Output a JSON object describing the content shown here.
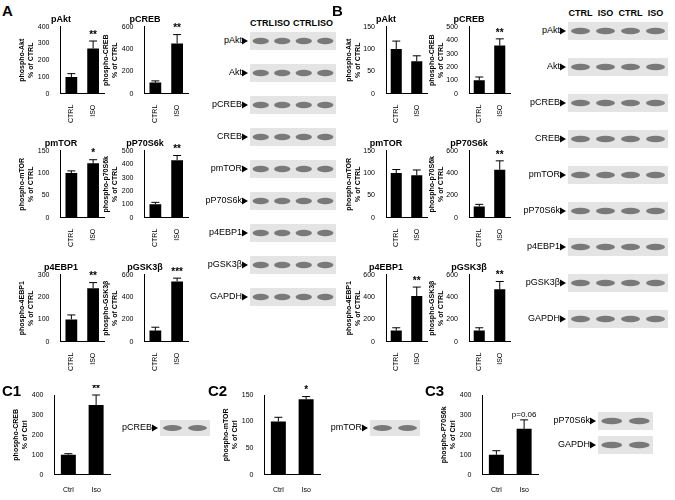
{
  "chart_data": [
    {
      "type": "bar",
      "title": "pAkt",
      "categories": [
        "CTRL",
        "ISO"
      ],
      "values": [
        100,
        270
      ],
      "errors": [
        20,
        45
      ],
      "annotation": "**",
      "ylabel": "phospho-Akt\n% of CTRL",
      "ylim": [
        0,
        400
      ],
      "yticks": [
        0,
        100,
        200,
        300,
        400
      ],
      "color": "#000000",
      "grid": false
    },
    {
      "type": "bar",
      "title": "pCREB",
      "categories": [
        "CTRL",
        "ISO"
      ],
      "values": [
        100,
        450
      ],
      "errors": [
        15,
        80
      ],
      "annotation": "**",
      "ylabel": "phospho-CREB\n% of CTRL",
      "ylim": [
        0,
        600
      ],
      "yticks": [
        0,
        200,
        400,
        600
      ],
      "color": "#000000",
      "grid": false
    },
    {
      "type": "bar",
      "title": "pmTOR",
      "categories": [
        "CTRL",
        "ISO"
      ],
      "values": [
        100,
        122
      ],
      "errors": [
        5,
        8
      ],
      "annotation": "*",
      "ylabel": "phospho-mTOR\n% of CTRL",
      "ylim": [
        0,
        150
      ],
      "yticks": [
        0,
        50,
        100,
        150
      ],
      "color": "#000000",
      "grid": false
    },
    {
      "type": "bar",
      "title": "pP70S6k",
      "categories": [
        "CTRL",
        "ISO"
      ],
      "values": [
        100,
        430
      ],
      "errors": [
        15,
        35
      ],
      "annotation": "**",
      "ylabel": "phospho-p70S6k\n% of CTRL",
      "ylim": [
        0,
        500
      ],
      "yticks": [
        0,
        100,
        200,
        300,
        400,
        500
      ],
      "color": "#000000",
      "grid": false
    },
    {
      "type": "bar",
      "title": "p4EBP1",
      "categories": [
        "CTRL",
        "ISO"
      ],
      "values": [
        100,
        240
      ],
      "errors": [
        20,
        25
      ],
      "annotation": "**",
      "ylabel": "phospho-4EBP1\n% of CTRL",
      "ylim": [
        0,
        300
      ],
      "yticks": [
        0,
        100,
        200,
        300
      ],
      "color": "#000000",
      "grid": false
    },
    {
      "type": "bar",
      "title": "pGSK3β",
      "categories": [
        "CTRL",
        "ISO"
      ],
      "values": [
        100,
        540
      ],
      "errors": [
        30,
        30
      ],
      "annotation": "***",
      "ylabel": "phospho-GSK3β\n% of CTRL",
      "ylim": [
        0,
        600
      ],
      "yticks": [
        0,
        200,
        400,
        600
      ],
      "color": "#000000",
      "grid": false
    },
    {
      "type": "bar",
      "title": "pAkt",
      "categories": [
        "CTRL",
        "ISO"
      ],
      "values": [
        100,
        73
      ],
      "errors": [
        18,
        12
      ],
      "ylabel": "phospho-Akt\n% of CTRL",
      "ylim": [
        0,
        150
      ],
      "yticks": [
        0,
        50,
        100,
        150
      ],
      "color": "#000000",
      "grid": false
    },
    {
      "type": "bar",
      "title": "pCREB",
      "categories": [
        "CTRL",
        "ISO"
      ],
      "values": [
        100,
        360
      ],
      "errors": [
        25,
        50
      ],
      "annotation": "**",
      "ylabel": "phospho-CREB\n% of CTRL",
      "ylim": [
        0,
        500
      ],
      "yticks": [
        0,
        100,
        200,
        300,
        400,
        500
      ],
      "color": "#000000",
      "grid": false
    },
    {
      "type": "bar",
      "title": "pmTOR",
      "categories": [
        "CTRL",
        "ISO"
      ],
      "values": [
        100,
        95
      ],
      "errors": [
        8,
        12
      ],
      "ylabel": "phospho-mTOR\n% of CTRL",
      "ylim": [
        0,
        150
      ],
      "yticks": [
        0,
        50,
        100,
        150
      ],
      "color": "#000000",
      "grid": false
    },
    {
      "type": "bar",
      "title": "pP70S6k",
      "categories": [
        "CTRL",
        "ISO"
      ],
      "values": [
        100,
        430
      ],
      "errors": [
        20,
        80
      ],
      "annotation": "**",
      "ylabel": "phospho-p70S6k\n% of CTRL",
      "ylim": [
        0,
        600
      ],
      "yticks": [
        0,
        200,
        400,
        600
      ],
      "color": "#000000",
      "grid": false
    },
    {
      "type": "bar",
      "title": "p4EBP1",
      "categories": [
        "CTRL",
        "ISO"
      ],
      "values": [
        100,
        410
      ],
      "errors": [
        25,
        80
      ],
      "annotation": "**",
      "ylabel": "phospho-4EBP1\n% of CTRL",
      "ylim": [
        0,
        600
      ],
      "yticks": [
        0,
        200,
        400,
        600
      ],
      "color": "#000000",
      "grid": false
    },
    {
      "type": "bar",
      "title": "pGSK3β",
      "categories": [
        "CTRL",
        "ISO"
      ],
      "values": [
        100,
        470
      ],
      "errors": [
        25,
        70
      ],
      "annotation": "**",
      "ylabel": "phospho-GSK3β\n% of CTRL",
      "ylim": [
        0,
        600
      ],
      "yticks": [
        0,
        200,
        400,
        600
      ],
      "color": "#000000",
      "grid": false
    },
    {
      "type": "bar",
      "categories": [
        "Ctrl",
        "Iso"
      ],
      "values": [
        100,
        350
      ],
      "errors": [
        5,
        50
      ],
      "annotation": "**",
      "ylabel": "phospho-CREB\n% of Ctrl",
      "ylim": [
        0,
        400
      ],
      "yticks": [
        0,
        100,
        200,
        300,
        400
      ],
      "color": "#000000",
      "grid": false
    },
    {
      "type": "bar",
      "categories": [
        "Ctrl",
        "Iso"
      ],
      "values": [
        100,
        142
      ],
      "errors": [
        8,
        5
      ],
      "annotation": "*",
      "ylabel": "phospho-mTOR\n% of Ctrl",
      "ylim": [
        0,
        150
      ],
      "yticks": [
        0,
        50,
        100,
        150
      ],
      "color": "#000000",
      "grid": false
    },
    {
      "type": "bar",
      "categories": [
        "Ctrl",
        "Iso"
      ],
      "values": [
        100,
        230
      ],
      "errors": [
        20,
        45
      ],
      "annotation": "p=0.06",
      "ylabel": "phospho-P70S6k\n% of Ctrl",
      "ylim": [
        0,
        400
      ],
      "yticks": [
        0,
        100,
        200,
        300,
        400
      ],
      "color": "#000000",
      "grid": false
    }
  ],
  "panels": [
    {
      "label": "A",
      "blot": {
        "lanes": [
          "CTRL",
          "ISO",
          "CTRL",
          "ISO"
        ],
        "rows": [
          "pAkt",
          "Akt",
          "pCREB",
          "CREB",
          "pmTOR",
          "pP70S6k",
          "p4EBP1",
          "pGSK3β",
          "GAPDH"
        ]
      }
    },
    {
      "label": "B",
      "blot": {
        "lanes": [
          "CTRL",
          "ISO",
          "CTRL",
          "ISO"
        ],
        "rows": [
          "pAkt",
          "Akt",
          "pCREB",
          "CREB",
          "pmTOR",
          "pP70S6k",
          "p4EBP1",
          "pGSK3β",
          "GAPDH"
        ]
      }
    },
    {
      "label": "C1",
      "blot": {
        "rows": [
          "pCREB"
        ]
      }
    },
    {
      "label": "C2",
      "blot": {
        "rows": [
          "pmTOR"
        ]
      }
    },
    {
      "label": "C3",
      "blot": {
        "rows": [
          "pP70S6k",
          "GAPDH"
        ]
      }
    }
  ]
}
